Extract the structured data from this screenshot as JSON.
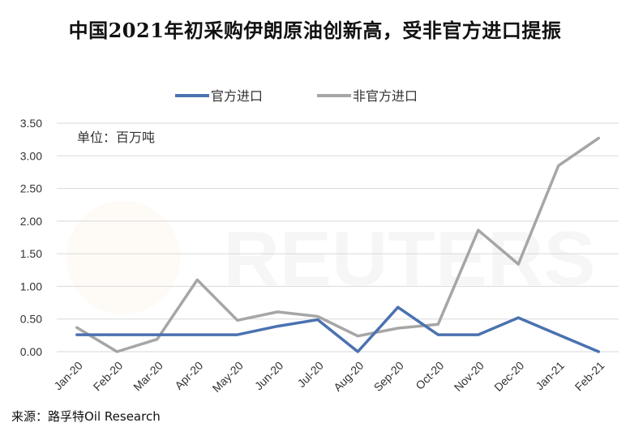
{
  "title": "中国2021年初采购伊朗原油创新高，受非官方进口提振",
  "source": "来源：路孚特Oil Research",
  "watermark": "REUTERS",
  "chart_data": {
    "type": "line",
    "unit_label": "单位：百万吨",
    "categories": [
      "Jan-20",
      "Feb-20",
      "Mar-20",
      "Apr-20",
      "May-20",
      "Jun-20",
      "Jul-20",
      "Aug-20",
      "Sep-20",
      "Oct-20",
      "Nov-20",
      "Dec-20",
      "Jan-21",
      "Feb-21"
    ],
    "series": [
      {
        "name": "官方进口",
        "color": "#4a72b0",
        "values": [
          0.26,
          0.26,
          0.26,
          0.26,
          0.26,
          0.39,
          0.49,
          0.0,
          0.68,
          0.26,
          0.26,
          0.52,
          0.26,
          0.0
        ]
      },
      {
        "name": "非官方进口",
        "color": "#a6a6a6",
        "values": [
          0.37,
          0.0,
          0.19,
          1.1,
          0.48,
          0.61,
          0.54,
          0.24,
          0.36,
          0.42,
          1.86,
          1.34,
          2.85,
          3.27
        ]
      }
    ],
    "ylim": [
      0,
      3.5
    ],
    "yticks": [
      "0.00",
      "0.50",
      "1.00",
      "1.50",
      "2.00",
      "2.50",
      "3.00",
      "3.50"
    ],
    "legend": "top-center",
    "grid": true
  }
}
